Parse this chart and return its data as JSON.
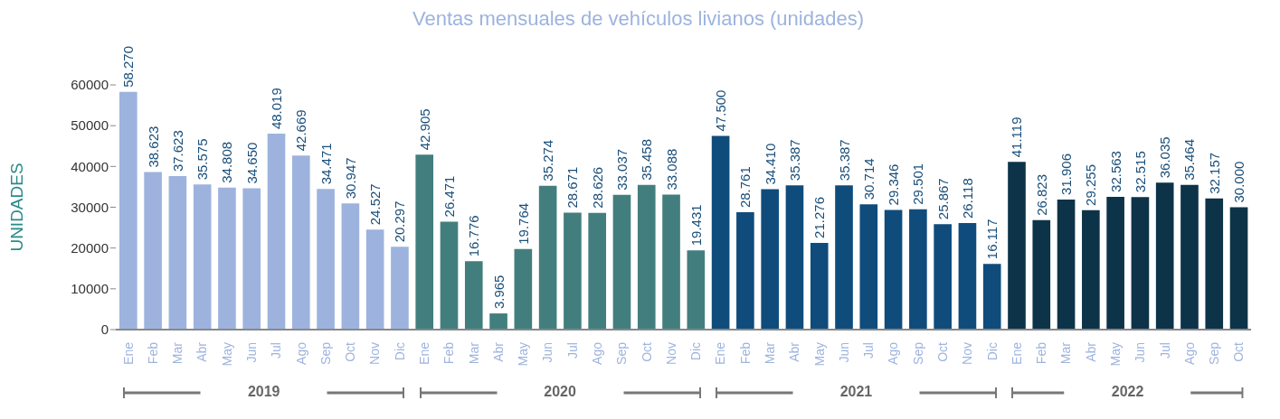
{
  "chart_data": {
    "type": "bar",
    "title": "Ventas mensuales de vehículos livianos    (unidades)",
    "ylabel": "UNIDADES",
    "categories": [
      "Ene",
      "Feb",
      "Mar",
      "Abr",
      "May",
      "Jun",
      "Jul",
      "Ago",
      "Sep",
      "Oct",
      "Nov",
      "Dic",
      "Ene",
      "Feb",
      "Mar",
      "Abr",
      "May",
      "Jun",
      "Jul",
      "Ago",
      "Sep",
      "Oct",
      "Nov",
      "Dic",
      "Ene",
      "Feb",
      "Mar",
      "Abr",
      "May",
      "Jun",
      "Jul",
      "Ago",
      "Sep",
      "Oct",
      "Nov",
      "Dic",
      "Ene",
      "Feb",
      "Mar",
      "Abr",
      "May",
      "Jun",
      "Jul",
      "Ago",
      "Sep",
      "Oct"
    ],
    "values": [
      58270,
      38623,
      37623,
      35575,
      34808,
      34650,
      48019,
      42669,
      34471,
      30947,
      24527,
      20297,
      42905,
      26471,
      16776,
      3965,
      19764,
      35274,
      28671,
      28626,
      33037,
      35458,
      33088,
      19431,
      47500,
      28761,
      34410,
      35387,
      21276,
      35387,
      30714,
      29346,
      29501,
      25867,
      26118,
      16117,
      41119,
      26823,
      31906,
      29255,
      32563,
      32515,
      36035,
      35464,
      32157,
      30000
    ],
    "value_labels": [
      "58.270",
      "38.623",
      "37.623",
      "35.575",
      "34.808",
      "34.650",
      "48.019",
      "42.669",
      "34.471",
      "30.947",
      "24.527",
      "20.297",
      "42.905",
      "26.471",
      "16.776",
      "3.965",
      "19.764",
      "35.274",
      "28.671",
      "28.626",
      "33.037",
      "35.458",
      "33.088",
      "19.431",
      "47.500",
      "28.761",
      "34.410",
      "35.387",
      "21.276",
      "35.387",
      "30.714",
      "29.346",
      "29.501",
      "25.867",
      "26.118",
      "16.117",
      "41.119",
      "26.823",
      "31.906",
      "29.255",
      "32.563",
      "32.515",
      "36.035",
      "35.464",
      "32.157",
      "30.000"
    ],
    "colors": [
      "#9db3de",
      "#9db3de",
      "#9db3de",
      "#9db3de",
      "#9db3de",
      "#9db3de",
      "#9db3de",
      "#9db3de",
      "#9db3de",
      "#9db3de",
      "#9db3de",
      "#9db3de",
      "#437e7e",
      "#437e7e",
      "#437e7e",
      "#437e7e",
      "#437e7e",
      "#437e7e",
      "#437e7e",
      "#437e7e",
      "#437e7e",
      "#437e7e",
      "#437e7e",
      "#437e7e",
      "#0f4c7c",
      "#0f4c7c",
      "#0f4c7c",
      "#0f4c7c",
      "#0f4c7c",
      "#0f4c7c",
      "#0f4c7c",
      "#0f4c7c",
      "#0f4c7c",
      "#0f4c7c",
      "#0f4c7c",
      "#0f4c7c",
      "#0d3349",
      "#0d3349",
      "#0d3349",
      "#0d3349",
      "#0d3349",
      "#0d3349",
      "#0d3349",
      "#0d3349",
      "#0d3349",
      "#0d3349"
    ],
    "ylim": [
      0,
      60000
    ],
    "yticks": [
      0,
      10000,
      20000,
      30000,
      40000,
      50000,
      60000
    ],
    "annotations": [
      "2019",
      "2020",
      "2021",
      "2022"
    ],
    "grid": false,
    "legend": false
  }
}
